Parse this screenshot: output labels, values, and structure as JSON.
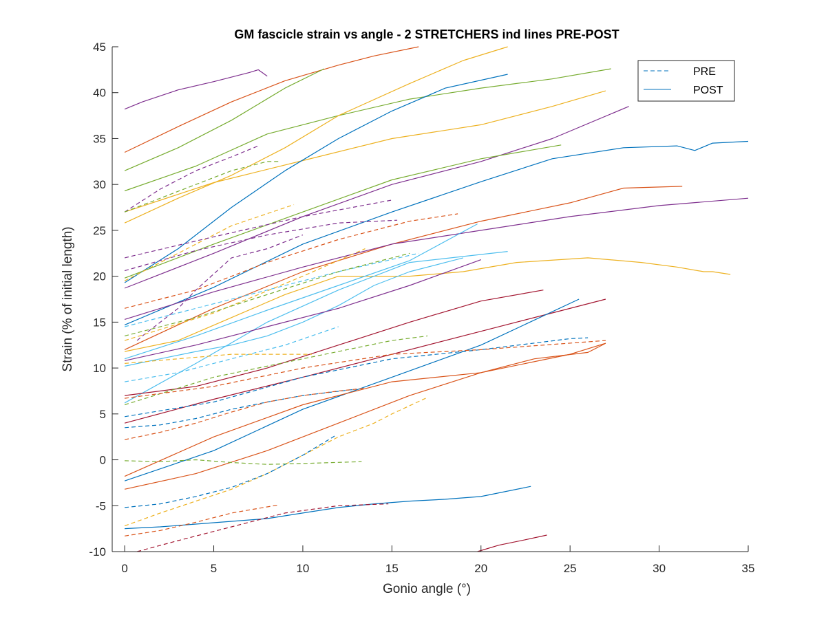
{
  "chart_data": {
    "type": "line",
    "title": "GM fascicle strain vs angle - 2 STRETCHERS ind lines PRE-POST",
    "xlabel": "Gonio angle (°)",
    "ylabel": "Strain (% of initial length)",
    "xlim": [
      -0.7,
      35
    ],
    "ylim": [
      -10,
      45
    ],
    "xticks": [
      0,
      5,
      10,
      15,
      20,
      25,
      30,
      35
    ],
    "yticks": [
      -10,
      -5,
      0,
      5,
      10,
      15,
      20,
      25,
      30,
      35,
      40,
      45
    ],
    "grid": false,
    "legend": {
      "position": "top-right",
      "entries": [
        {
          "label": "PRE",
          "style": "dashed",
          "color": "#0072BD"
        },
        {
          "label": "POST",
          "style": "solid",
          "color": "#0072BD"
        }
      ]
    },
    "series": [
      {
        "condition": "POST",
        "color": "#7E2F8E",
        "x": [
          0,
          1,
          3,
          5,
          7,
          7.5,
          8
        ],
        "y": [
          38.2,
          39.0,
          40.3,
          41.2,
          42.2,
          42.5,
          41.8
        ]
      },
      {
        "condition": "POST",
        "color": "#D95319",
        "x": [
          0,
          3,
          6,
          9,
          12,
          14,
          16.5
        ],
        "y": [
          33.5,
          36.3,
          39.0,
          41.3,
          43.0,
          44.0,
          45.0
        ]
      },
      {
        "condition": "POST",
        "color": "#77AC30",
        "x": [
          0,
          3,
          6,
          9,
          11.2
        ],
        "y": [
          31.5,
          34.0,
          37.0,
          40.5,
          42.6
        ]
      },
      {
        "condition": "POST",
        "color": "#77AC30",
        "x": [
          0,
          4,
          8,
          12,
          16,
          20,
          24,
          27.3
        ],
        "y": [
          29.3,
          32.0,
          35.5,
          37.5,
          39.3,
          40.5,
          41.5,
          42.6
        ]
      },
      {
        "condition": "POST",
        "color": "#EDB120",
        "x": [
          0,
          3,
          6,
          9,
          12,
          16,
          19,
          21.5
        ],
        "y": [
          25.8,
          28.5,
          31.0,
          34.0,
          37.5,
          41.0,
          43.5,
          45.0
        ]
      },
      {
        "condition": "POST",
        "color": "#EDB120",
        "x": [
          0,
          5,
          10,
          15,
          20,
          24,
          27
        ],
        "y": [
          27.0,
          30.2,
          32.6,
          35.0,
          36.5,
          38.5,
          40.2
        ]
      },
      {
        "condition": "POST",
        "color": "#0072BD",
        "x": [
          0,
          3,
          6,
          9,
          12,
          15,
          18,
          21.5
        ],
        "y": [
          19.3,
          23.0,
          27.5,
          31.5,
          35.0,
          38.0,
          40.5,
          42.0
        ]
      },
      {
        "condition": "POST",
        "color": "#7E2F8E",
        "x": [
          0,
          5,
          10,
          15,
          20,
          24,
          28.3
        ],
        "y": [
          18.7,
          22.5,
          26.5,
          30.0,
          32.5,
          35.0,
          38.5
        ]
      },
      {
        "condition": "POST",
        "color": "#77AC30",
        "x": [
          0,
          5,
          10,
          15,
          20,
          24.5
        ],
        "y": [
          19.8,
          23.5,
          27.0,
          30.5,
          32.8,
          34.3
        ]
      },
      {
        "condition": "POST",
        "color": "#0072BD",
        "x": [
          0,
          5,
          10,
          15,
          20,
          24,
          28,
          31,
          32,
          33,
          35
        ],
        "y": [
          14.7,
          18.8,
          23.5,
          27.0,
          30.3,
          32.8,
          34.0,
          34.2,
          33.7,
          34.5,
          34.7
        ]
      },
      {
        "condition": "POST",
        "color": "#D95319",
        "x": [
          0,
          5,
          10,
          15,
          20,
          25,
          28,
          31.3
        ],
        "y": [
          12.0,
          16.5,
          20.5,
          23.5,
          26.0,
          28.0,
          29.6,
          29.8
        ]
      },
      {
        "condition": "POST",
        "color": "#7E2F8E",
        "x": [
          0,
          5,
          10,
          15,
          20,
          25,
          30,
          35
        ],
        "y": [
          15.3,
          18.3,
          21.0,
          23.5,
          25.0,
          26.5,
          27.7,
          28.5
        ]
      },
      {
        "condition": "POST",
        "color": "#EDB120",
        "x": [
          0,
          3,
          6,
          9,
          12,
          16,
          19,
          22,
          26,
          29,
          31,
          32.5,
          33,
          34
        ],
        "y": [
          11.8,
          13.0,
          15.5,
          18.0,
          20.0,
          20.0,
          20.5,
          21.5,
          22.0,
          21.5,
          21.0,
          20.5,
          20.5,
          20.2
        ]
      },
      {
        "condition": "POST",
        "color": "#4DBEEE",
        "x": [
          0,
          4,
          8,
          12,
          16,
          19.8
        ],
        "y": [
          11.0,
          13.5,
          16.3,
          19.0,
          21.7,
          25.7
        ]
      },
      {
        "condition": "POST",
        "color": "#4DBEEE",
        "x": [
          0,
          4,
          8,
          12,
          16,
          21.5
        ],
        "y": [
          6.2,
          10.5,
          15.0,
          18.5,
          21.5,
          22.7
        ]
      },
      {
        "condition": "POST",
        "color": "#4DBEEE",
        "x": [
          0,
          2,
          4,
          6,
          8,
          10,
          12,
          14,
          16,
          19
        ],
        "y": [
          10.2,
          11.0,
          11.8,
          12.5,
          13.5,
          15.0,
          16.8,
          19.0,
          20.5,
          22.0
        ]
      },
      {
        "condition": "POST",
        "color": "#7E2F8E",
        "x": [
          0,
          4,
          8,
          12,
          16,
          20
        ],
        "y": [
          10.8,
          12.5,
          14.5,
          16.5,
          19.0,
          21.8
        ]
      },
      {
        "condition": "POST",
        "color": "#A2142F",
        "x": [
          0,
          4,
          8,
          12,
          16,
          20,
          23.5
        ],
        "y": [
          7.0,
          8.0,
          10.0,
          12.5,
          15.0,
          17.3,
          18.5
        ]
      },
      {
        "condition": "POST",
        "color": "#A2142F",
        "x": [
          0,
          5,
          10,
          15,
          20,
          24,
          27
        ],
        "y": [
          4.0,
          6.6,
          9.0,
          11.5,
          14.0,
          16.0,
          17.5
        ]
      },
      {
        "condition": "POST",
        "color": "#0072BD",
        "x": [
          0,
          5,
          10,
          15,
          20,
          25.5
        ],
        "y": [
          -2.3,
          1.0,
          5.5,
          9.0,
          12.5,
          17.5
        ]
      },
      {
        "condition": "POST",
        "color": "#D95319",
        "x": [
          0,
          5,
          10,
          15,
          20,
          25,
          27
        ],
        "y": [
          -1.8,
          2.5,
          6.0,
          8.5,
          9.5,
          11.5,
          12.7
        ]
      },
      {
        "condition": "POST",
        "color": "#D95319",
        "x": [
          0,
          4,
          8,
          12,
          16,
          20,
          23,
          26,
          27
        ],
        "y": [
          -3.2,
          -1.5,
          1.0,
          4.0,
          7.0,
          9.5,
          11.0,
          11.7,
          12.7
        ]
      },
      {
        "condition": "POST",
        "color": "#0072BD",
        "x": [
          0,
          2,
          4,
          6,
          8,
          10,
          12,
          14,
          16,
          18,
          20,
          22.8
        ],
        "y": [
          -7.5,
          -7.3,
          -7.0,
          -6.7,
          -6.4,
          -5.8,
          -5.2,
          -4.8,
          -4.5,
          -4.3,
          -4.0,
          -2.9
        ]
      },
      {
        "condition": "POST",
        "color": "#A2142F",
        "x": [
          19.8,
          21,
          22.5,
          23.7
        ],
        "y": [
          -10.0,
          -9.3,
          -8.7,
          -8.2
        ]
      },
      {
        "condition": "PRE",
        "color": "#7E2F8E",
        "x": [
          0,
          2,
          4,
          6,
          7.5
        ],
        "y": [
          27.0,
          29.5,
          31.5,
          33.0,
          34.2
        ]
      },
      {
        "condition": "PRE",
        "color": "#77AC30",
        "x": [
          0,
          2,
          4,
          6,
          8,
          8.7
        ],
        "y": [
          27.0,
          28.5,
          30.0,
          31.5,
          32.5,
          32.5
        ]
      },
      {
        "condition": "PRE",
        "color": "#EDB120",
        "x": [
          0,
          3,
          6,
          9.5
        ],
        "y": [
          19.5,
          22.5,
          25.5,
          27.8
        ]
      },
      {
        "condition": "PRE",
        "color": "#7E2F8E",
        "x": [
          0,
          5,
          10,
          15
        ],
        "y": [
          22.0,
          24.3,
          26.5,
          28.3
        ]
      },
      {
        "condition": "PRE",
        "color": "#7E2F8E",
        "x": [
          0,
          4,
          8,
          12,
          15.3
        ],
        "y": [
          20.6,
          22.8,
          24.5,
          25.8,
          26.1
        ]
      },
      {
        "condition": "PRE",
        "color": "#D95319",
        "x": [
          0,
          4,
          8,
          12,
          16,
          18.7
        ],
        "y": [
          16.5,
          18.5,
          21.5,
          24.0,
          26.0,
          26.8
        ]
      },
      {
        "condition": "PRE",
        "color": "#7E2F8E",
        "x": [
          0.7,
          1,
          2,
          3,
          4,
          6,
          8,
          10
        ],
        "y": [
          13.0,
          13.5,
          15.0,
          16.5,
          18.5,
          22.0,
          23.0,
          24.5
        ]
      },
      {
        "condition": "PRE",
        "color": "#4DBEEE",
        "x": [
          0,
          4,
          8,
          12,
          16.5
        ],
        "y": [
          14.5,
          16.5,
          18.5,
          20.5,
          22.5
        ]
      },
      {
        "condition": "PRE",
        "color": "#EDB120",
        "x": [
          0,
          5,
          10,
          13.5
        ],
        "y": [
          13.0,
          16.0,
          20.0,
          23.0
        ]
      },
      {
        "condition": "PRE",
        "color": "#77AC30",
        "x": [
          0,
          4,
          8,
          12,
          16
        ],
        "y": [
          13.5,
          15.5,
          18.0,
          20.5,
          22.5
        ]
      },
      {
        "condition": "PRE",
        "color": "#4DBEEE",
        "x": [
          0,
          3,
          6,
          9,
          12
        ],
        "y": [
          8.5,
          9.5,
          11.0,
          12.5,
          14.5
        ]
      },
      {
        "condition": "PRE",
        "color": "#EDB120",
        "x": [
          0,
          3,
          6,
          9,
          10.5
        ],
        "y": [
          10.5,
          11.0,
          11.5,
          11.5,
          11.5
        ]
      },
      {
        "condition": "PRE",
        "color": "#77AC30",
        "x": [
          0,
          5,
          10,
          15,
          17
        ],
        "y": [
          6.0,
          9.0,
          11.0,
          13.0,
          13.5
        ]
      },
      {
        "condition": "PRE",
        "color": "#0072BD",
        "x": [
          0,
          5,
          10,
          15,
          20,
          25,
          26
        ],
        "y": [
          4.7,
          6.3,
          9.0,
          11.0,
          12.0,
          13.2,
          13.3
        ]
      },
      {
        "condition": "PRE",
        "color": "#D95319",
        "x": [
          0,
          5,
          10,
          15,
          20,
          27
        ],
        "y": [
          6.7,
          8.0,
          10.0,
          11.5,
          12.0,
          13.0
        ]
      },
      {
        "condition": "PRE",
        "color": "#0072BD",
        "x": [
          0,
          2,
          4,
          6,
          8,
          10,
          13
        ],
        "y": [
          3.5,
          3.8,
          4.5,
          5.5,
          6.3,
          7.0,
          7.7
        ]
      },
      {
        "condition": "PRE",
        "color": "#D95319",
        "x": [
          0,
          2,
          4,
          6,
          8,
          10,
          12,
          13.5
        ],
        "y": [
          2.2,
          3.0,
          4.0,
          5.2,
          6.3,
          7.0,
          7.5,
          7.8
        ]
      },
      {
        "condition": "PRE",
        "color": "#EDB120",
        "x": [
          0,
          2,
          4,
          6,
          8,
          10,
          12,
          14,
          15,
          17
        ],
        "y": [
          -7.2,
          -5.8,
          -4.5,
          -3.2,
          -1.5,
          0.5,
          2.5,
          4.0,
          5.0,
          6.8
        ]
      },
      {
        "condition": "PRE",
        "color": "#0072BD",
        "x": [
          0,
          2,
          4,
          6,
          8,
          10,
          11.8
        ],
        "y": [
          -5.2,
          -4.8,
          -4.0,
          -3.0,
          -1.5,
          0.5,
          2.6
        ]
      },
      {
        "condition": "PRE",
        "color": "#77AC30",
        "x": [
          0,
          2,
          4,
          6,
          8,
          10,
          13.3
        ],
        "y": [
          -0.1,
          -0.2,
          0.0,
          -0.3,
          -0.5,
          -0.4,
          -0.2
        ]
      },
      {
        "condition": "PRE",
        "color": "#D95319",
        "x": [
          0,
          2,
          4,
          6,
          8.7
        ],
        "y": [
          -8.3,
          -7.7,
          -6.8,
          -5.8,
          -4.9
        ]
      },
      {
        "condition": "PRE",
        "color": "#A2142F",
        "x": [
          0.7,
          3,
          6,
          9,
          12,
          14.8
        ],
        "y": [
          -10.0,
          -8.8,
          -7.3,
          -5.8,
          -5.0,
          -4.8
        ]
      }
    ]
  }
}
